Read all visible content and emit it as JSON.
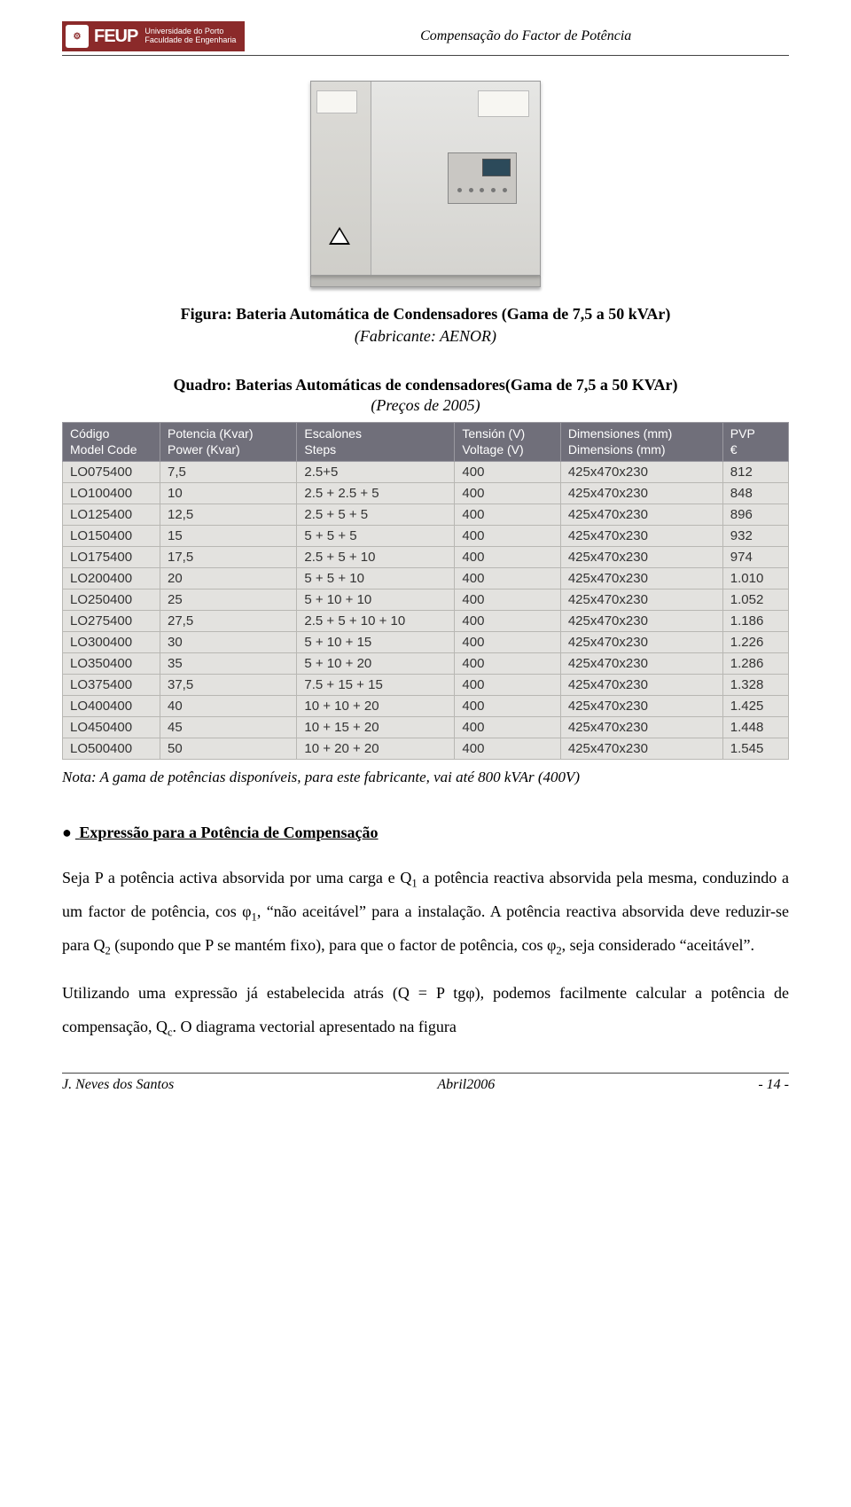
{
  "header": {
    "logo_acronym": "FEUP",
    "logo_line1": "Universidade do Porto",
    "logo_line2": "Faculdade de Engenharia",
    "running_title": "Compensação do Factor de Potência"
  },
  "figure": {
    "caption": "Figura: Bateria Automática de Condensadores (Gama de 7,5 a 50 kVAr)",
    "subcaption": "(Fabricante: AENOR)"
  },
  "quadro": {
    "title": "Quadro: Baterias Automáticas de condensadores(Gama de 7,5 a 50 KVAr)",
    "subtitle": "(Preços de 2005)"
  },
  "table": {
    "headers": [
      {
        "l1": "Código",
        "l2": "Model Code"
      },
      {
        "l1": "Potencia (Kvar)",
        "l2": "Power (Kvar)"
      },
      {
        "l1": "Escalones",
        "l2": "Steps"
      },
      {
        "l1": "Tensión (V)",
        "l2": "Voltage (V)"
      },
      {
        "l1": "Dimensiones (mm)",
        "l2": "Dimensions (mm)"
      },
      {
        "l1": "PVP",
        "l2": "€"
      }
    ],
    "rows": [
      [
        "LO075400",
        "7,5",
        "2.5+5",
        "400",
        "425x470x230",
        "812"
      ],
      [
        "LO100400",
        "10",
        "2.5 + 2.5 + 5",
        "400",
        "425x470x230",
        "848"
      ],
      [
        "LO125400",
        "12,5",
        "2.5 + 5 + 5",
        "400",
        "425x470x230",
        "896"
      ],
      [
        "LO150400",
        "15",
        "5 + 5 + 5",
        "400",
        "425x470x230",
        "932"
      ],
      [
        "LO175400",
        "17,5",
        "2.5 + 5 + 10",
        "400",
        "425x470x230",
        "974"
      ],
      [
        "LO200400",
        "20",
        "5 + 5 + 10",
        "400",
        "425x470x230",
        "1.010"
      ],
      [
        "LO250400",
        "25",
        "5 + 10 + 10",
        "400",
        "425x470x230",
        "1.052"
      ],
      [
        "LO275400",
        "27,5",
        "2.5 + 5 + 10 + 10",
        "400",
        "425x470x230",
        "1.186"
      ],
      [
        "LO300400",
        "30",
        "5 + 10 + 15",
        "400",
        "425x470x230",
        "1.226"
      ],
      [
        "LO350400",
        "35",
        "5 + 10 + 20",
        "400",
        "425x470x230",
        "1.286"
      ],
      [
        "LO375400",
        "37,5",
        "7.5 + 15 + 15",
        "400",
        "425x470x230",
        "1.328"
      ],
      [
        "LO400400",
        "40",
        "10 + 10 + 20",
        "400",
        "425x470x230",
        "1.425"
      ],
      [
        "LO450400",
        "45",
        "10 + 15 + 20",
        "400",
        "425x470x230",
        "1.448"
      ],
      [
        "LO500400",
        "50",
        "10 + 20 + 20",
        "400",
        "425x470x230",
        "1.545"
      ]
    ],
    "header_bg": "#706f7a",
    "header_fg": "#ffffff",
    "cell_bg": "#e3e2df",
    "border_color": "#b8b7b3"
  },
  "table_note": "Nota: A gama de potências disponíveis, para este fabricante, vai até 800 kVAr (400V)",
  "section_heading": "Expressão para a Potência de Compensação",
  "paragraphs": {
    "p1_a": "Seja P a potência activa absorvida por uma carga e Q",
    "p1_b": " a potência reactiva absorvida pela mesma, conduzindo a um factor de potência, cos φ",
    "p1_c": ", “não aceitável” para a instalação. A potência reactiva absorvida deve reduzir-se para Q",
    "p1_d": " (supondo que P se mantém fixo), para que o factor de potência, cos φ",
    "p1_e": ", seja considerado “aceitável”.",
    "p2_a": "Utilizando uma expressão já estabelecida atrás (Q = P tgφ), podemos facilmente calcular a potência de compensação, Q",
    "p2_b": ". O diagrama vectorial apresentado na figura"
  },
  "footer": {
    "left": "J. Neves dos Santos",
    "center": "Abril2006",
    "right": "- 14 -"
  }
}
